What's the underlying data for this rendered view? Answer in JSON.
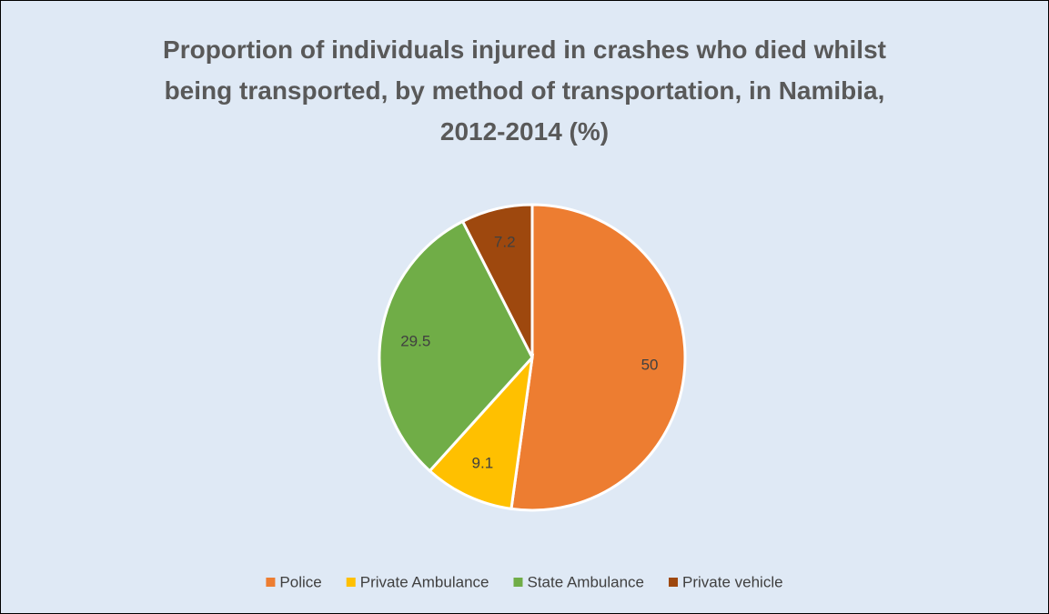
{
  "chart_data": {
    "type": "pie",
    "title": "Proportion of individuals injured in crashes who died whilst being transported, by method of transportation, in Namibia, 2012-2014 (%)",
    "categories": [
      "Police",
      "Private Ambulance",
      "State Ambulance",
      "Private vehicle"
    ],
    "values": [
      50,
      9.1,
      29.5,
      7.2
    ],
    "colors": [
      "#ed7d31",
      "#ffc000",
      "#70ad47",
      "#9e480e"
    ],
    "legend": "bottom"
  }
}
